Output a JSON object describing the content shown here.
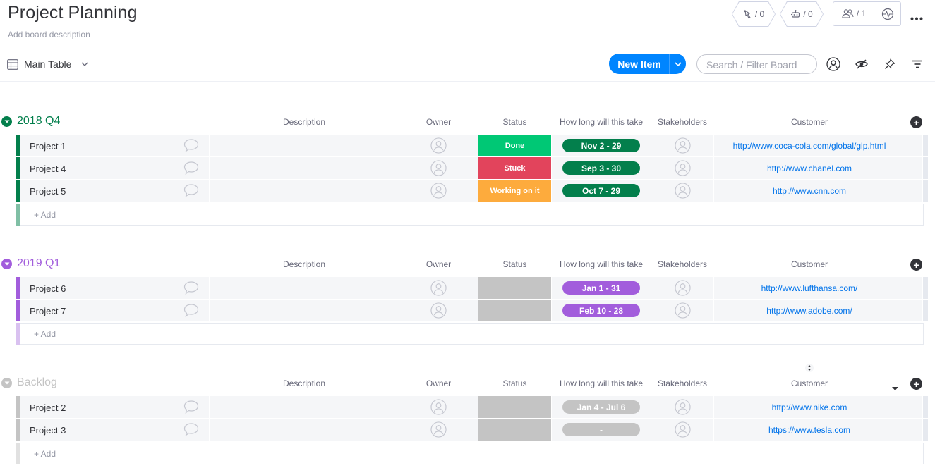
{
  "board": {
    "title": "Project Planning",
    "description_placeholder": "Add board description"
  },
  "header_actions": {
    "activity_count": "/ 0",
    "automations_count": "/ 0",
    "members_count": "/ 1"
  },
  "toolbar": {
    "view_label": "Main Table",
    "new_item_label": "New Item",
    "search_placeholder": "Search / Filter Board"
  },
  "columns": {
    "description": "Description",
    "owner": "Owner",
    "status": "Status",
    "timeline": "How long will this take",
    "stakeholders": "Stakeholders",
    "customer": "Customer"
  },
  "add_item_label": "+ Add",
  "colors": {
    "accent": "#0085ff",
    "done": "#00c875",
    "stuck": "#e2445c",
    "working": "#fdab3d",
    "green_group": "#037f4c",
    "purple_group": "#a25ddc",
    "grey_group": "#c4c4c4"
  },
  "groups": [
    {
      "title": "2018 Q4",
      "color": "#037f4c",
      "light": "#80bfa5",
      "items": [
        {
          "name": "Project 1",
          "status": "Done",
          "status_color": "#00c875",
          "timeline": "Nov 2 - 29",
          "customer": "http://www.coca-cola.com/global/glp.html"
        },
        {
          "name": "Project 4",
          "status": "Stuck",
          "status_color": "#e2445c",
          "timeline": "Sep 3 - 30",
          "customer": "http://www.chanel.com"
        },
        {
          "name": "Project 5",
          "status": "Working on it",
          "status_color": "#fdab3d",
          "timeline": "Oct 7 - 29",
          "customer": "http://www.cnn.com"
        }
      ]
    },
    {
      "title": "2019 Q1",
      "color": "#a25ddc",
      "light": "#d9c1f0",
      "items": [
        {
          "name": "Project 6",
          "status": "",
          "status_color": "#c4c4c4",
          "timeline": "Jan 1 - 31",
          "customer": "http://www.lufthansa.com/"
        },
        {
          "name": "Project 7",
          "status": "",
          "status_color": "#c4c4c4",
          "timeline": "Feb 10 - 28",
          "customer": "http://www.adobe.com/"
        }
      ]
    },
    {
      "title": "Backlog",
      "color": "#c4c4c4",
      "light": "#e1e1e1",
      "items": [
        {
          "name": "Project 2",
          "status": "",
          "status_color": "#c4c4c4",
          "timeline": "Jan 4 - Jul 6",
          "customer": "http://www.nike.com"
        },
        {
          "name": "Project 3",
          "status": "",
          "status_color": "#c4c4c4",
          "timeline": "-",
          "customer": "https://www.tesla.com"
        }
      ]
    }
  ]
}
